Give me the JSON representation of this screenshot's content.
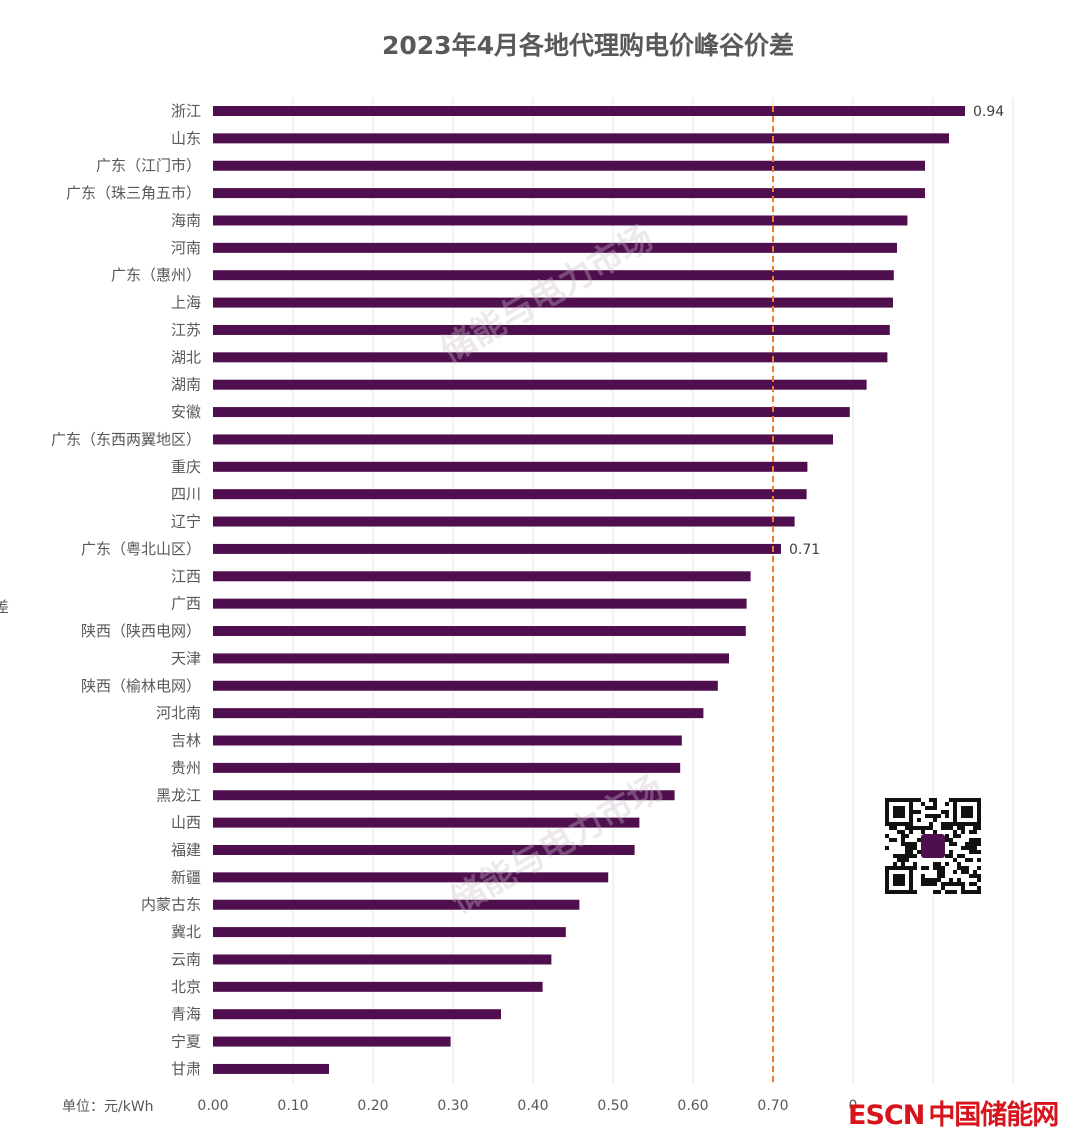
{
  "chart_data": {
    "type": "bar",
    "orientation": "horizontal",
    "title": "2023年4月各地代理购电价峰谷价差",
    "unit_label": "单位：元/kWh",
    "categories": [
      "浙江",
      "山东",
      "广东（江门市）",
      "广东（珠三角五市）",
      "海南",
      "河南",
      "广东（惠州）",
      "上海",
      "江苏",
      "湖北",
      "湖南",
      "安徽",
      "广东（东西两翼地区）",
      "重庆",
      "四川",
      "辽宁",
      "广东（粤北山区）",
      "江西",
      "广西",
      "陕西（陕西电网）",
      "天津",
      "陕西（榆林电网）",
      "河北南",
      "吉林",
      "贵州",
      "黑龙江",
      "山西",
      "福建",
      "新疆",
      "内蒙古东",
      "冀北",
      "云南",
      "北京",
      "青海",
      "宁夏",
      "甘肃"
    ],
    "values": [
      0.94,
      0.92,
      0.89,
      0.89,
      0.868,
      0.855,
      0.851,
      0.85,
      0.846,
      0.843,
      0.817,
      0.796,
      0.775,
      0.743,
      0.742,
      0.727,
      0.71,
      0.672,
      0.667,
      0.666,
      0.645,
      0.631,
      0.613,
      0.586,
      0.584,
      0.577,
      0.533,
      0.527,
      0.494,
      0.458,
      0.441,
      0.423,
      0.412,
      0.36,
      0.297,
      0.145
    ],
    "data_labels": [
      {
        "category": "浙江",
        "text": "0.94"
      },
      {
        "category": "广东（粤北山区）",
        "text": "0.71"
      }
    ],
    "xlim": [
      0,
      1.0
    ],
    "ticks": [
      "0.00",
      "0.10",
      "0.20",
      "0.30",
      "0.40",
      "0.50",
      "0.60",
      "0.70",
      "0",
      "",
      ""
    ],
    "reference_line": {
      "value": 0.7,
      "style": "dashed",
      "color": "#ED7D31"
    },
    "bar_color": "#4F0E4E",
    "grid": true,
    "legend": "none"
  },
  "watermark_text": "储能与电力市场",
  "brand": {
    "latin": "ESCN",
    "cn": "中国储能网"
  },
  "left_edge_char": "差"
}
